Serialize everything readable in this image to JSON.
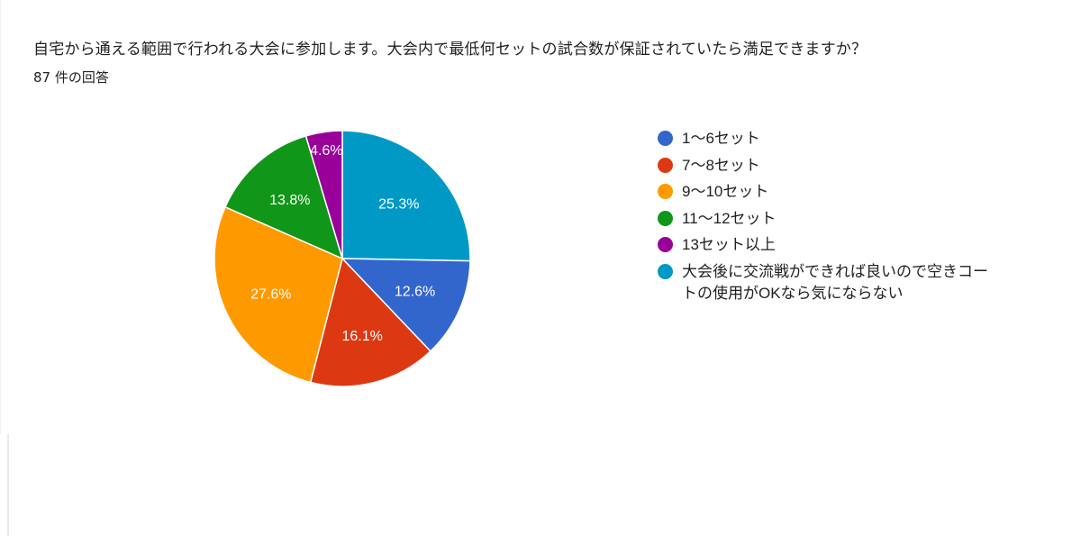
{
  "question": {
    "title": "自宅から通える範囲で行われる大会に参加します。大会内で最低何セットの試合数が保証されていたら満足できますか？",
    "response_count": "87 件の回答"
  },
  "legend": {
    "items": [
      {
        "label": "1〜6セット",
        "color": "#3366cc"
      },
      {
        "label": "7〜8セット",
        "color": "#dc3912"
      },
      {
        "label": "9〜10セット",
        "color": "#ff9900"
      },
      {
        "label": "11〜12セット",
        "color": "#109618"
      },
      {
        "label": "13セット以上",
        "color": "#990099"
      },
      {
        "label": "大会後に交流戦ができれば良いので空きコートの使用がOKなら気にならない",
        "color": "#0099c6"
      }
    ]
  },
  "chart_data": {
    "type": "pie",
    "title": "自宅から通える範囲で行われる大会に参加します。大会内で最低何セットの試合数が保証されていたら満足できますか？",
    "subtitle": "87 件の回答",
    "total_responses": 87,
    "categories": [
      "1〜6セット",
      "7〜8セット",
      "9〜10セット",
      "11〜12セット",
      "13セット以上",
      "大会後に交流戦ができれば良いので空きコートの使用がOKなら気にならない"
    ],
    "values": [
      12.6,
      16.1,
      27.6,
      13.8,
      4.6,
      25.3
    ],
    "counts": [
      11,
      14,
      24,
      12,
      4,
      22
    ],
    "labels": [
      "12.6%",
      "16.1%",
      "27.6%",
      "13.8%",
      "4.6%",
      "25.3%"
    ],
    "colors": [
      "#3366cc",
      "#dc3912",
      "#ff9900",
      "#109618",
      "#990099",
      "#0099c6"
    ],
    "start_angle_note": "last category drawn first starting at 12 o'clock, clockwise",
    "legend_position": "right"
  }
}
